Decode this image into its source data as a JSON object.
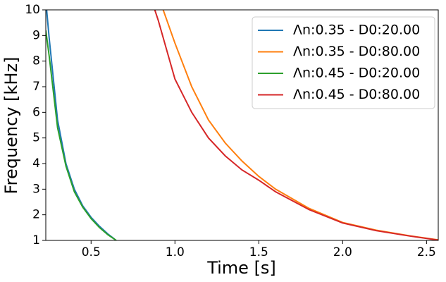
{
  "chart_data": {
    "type": "line",
    "xlabel": "Time [s]",
    "ylabel": "Frequency [kHz]",
    "xlim": [
      0.23,
      2.57
    ],
    "ylim": [
      1,
      10
    ],
    "xticks": [
      0.5,
      {
        "value": 1,
        "label": "1.0"
      },
      1.5,
      {
        "value": 2,
        "label": "2.0"
      },
      2.5
    ],
    "yticks": [
      1,
      2,
      3,
      4,
      5,
      6,
      7,
      8,
      9,
      10
    ],
    "legend": "upper right",
    "series": [
      {
        "name": "Λn:0.35 - D0:20.00",
        "color": "#1f77b4",
        "x": [
          0.235,
          0.25,
          0.3,
          0.35,
          0.4,
          0.45,
          0.5,
          0.55,
          0.6,
          0.64
        ],
        "values": [
          10,
          8.9,
          5.7,
          4.0,
          3.0,
          2.35,
          1.9,
          1.55,
          1.25,
          1.05
        ]
      },
      {
        "name": "Λn:0.35 - D0:80.00",
        "color": "#ff7f0e",
        "x": [
          0.93,
          1.0,
          1.1,
          1.2,
          1.3,
          1.4,
          1.5,
          1.6,
          1.8,
          2.0,
          2.2,
          2.4,
          2.57
        ],
        "values": [
          10,
          8.7,
          7.0,
          5.7,
          4.8,
          4.1,
          3.5,
          3.0,
          2.25,
          1.7,
          1.4,
          1.18,
          1.02
        ]
      },
      {
        "name": "Λn:0.45 - D0:20.00",
        "color": "#2ca02c",
        "x": [
          0.23,
          0.25,
          0.3,
          0.35,
          0.4,
          0.45,
          0.5,
          0.55,
          0.6,
          0.65
        ],
        "values": [
          9.2,
          8.2,
          5.4,
          3.9,
          2.9,
          2.3,
          1.85,
          1.5,
          1.22,
          1.0
        ]
      },
      {
        "name": "Λn:0.45 - D0:80.00",
        "color": "#d62728",
        "x": [
          0.88,
          0.9,
          1.0,
          1.1,
          1.2,
          1.3,
          1.4,
          1.5,
          1.6,
          1.8,
          2.0,
          2.2,
          2.4,
          2.57
        ],
        "values": [
          10,
          9.6,
          7.3,
          6.0,
          5.0,
          4.3,
          3.75,
          3.35,
          2.9,
          2.2,
          1.68,
          1.38,
          1.17,
          1.01
        ]
      }
    ]
  }
}
